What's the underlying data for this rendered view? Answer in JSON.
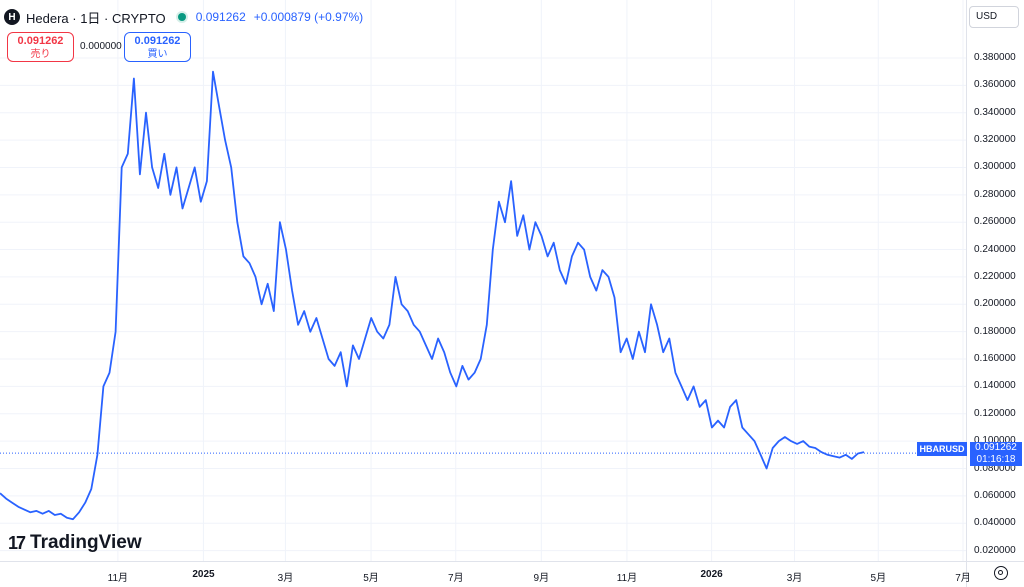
{
  "header": {
    "logo_letter": "H",
    "symbol_line": "Hedera · 1日 · CRYPTO",
    "price": "0.091262",
    "change": "+0.000879 (+0.97%)"
  },
  "trade": {
    "sell_price": "0.091262",
    "sell_label": "売り",
    "spread": "0.000000",
    "buy_price": "0.091262",
    "buy_label": "買い"
  },
  "currency": "USD",
  "last_price_label": {
    "symbol": "HBARUSD",
    "price": "0.091262",
    "countdown": "01:16:18"
  },
  "branding": {
    "mark": "17",
    "name": "TradingView"
  },
  "colors": {
    "line": "#2962ff",
    "sell": "#f23645",
    "buy": "#2962ff",
    "live_dot": "#089981"
  },
  "chart_data": {
    "type": "line",
    "series": [
      {
        "values": [
          0.062,
          0.058,
          0.055,
          0.052,
          0.05,
          0.048,
          0.049,
          0.047,
          0.049,
          0.046,
          0.047,
          0.044,
          0.043,
          0.048,
          0.055,
          0.065,
          0.09,
          0.14,
          0.15,
          0.18,
          0.3,
          0.31,
          0.365,
          0.295,
          0.34,
          0.3,
          0.285,
          0.31,
          0.28,
          0.3,
          0.27,
          0.285,
          0.3,
          0.275,
          0.29,
          0.37,
          0.345,
          0.32,
          0.3,
          0.26,
          0.235,
          0.23,
          0.22,
          0.2,
          0.215,
          0.195,
          0.26,
          0.24,
          0.21,
          0.185,
          0.195,
          0.18,
          0.19,
          0.175,
          0.16,
          0.155,
          0.165,
          0.14,
          0.17,
          0.16,
          0.175,
          0.19,
          0.18,
          0.175,
          0.185,
          0.22,
          0.2,
          0.195,
          0.185,
          0.18,
          0.17,
          0.16,
          0.175,
          0.165,
          0.15,
          0.14,
          0.155,
          0.145,
          0.15,
          0.16,
          0.185,
          0.24,
          0.275,
          0.26,
          0.29,
          0.25,
          0.265,
          0.24,
          0.26,
          0.25,
          0.235,
          0.245,
          0.225,
          0.215,
          0.235,
          0.245,
          0.24,
          0.22,
          0.21,
          0.225,
          0.22,
          0.205,
          0.165,
          0.175,
          0.16,
          0.18,
          0.165,
          0.2,
          0.185,
          0.165,
          0.175,
          0.15,
          0.14,
          0.13,
          0.14,
          0.125,
          0.13,
          0.11,
          0.115,
          0.11,
          0.125,
          0.13,
          0.11,
          0.105,
          0.1,
          0.09,
          0.08,
          0.095,
          0.1,
          0.103,
          0.1,
          0.098,
          0.1,
          0.096,
          0.095,
          0.092,
          0.09,
          0.089,
          0.088,
          0.09,
          0.087,
          0.091,
          0.092
        ]
      }
    ],
    "x_ticks": [
      {
        "label": "11月",
        "t": 0.062,
        "bold": false
      },
      {
        "label": "2025",
        "t": 0.157,
        "bold": true
      },
      {
        "label": "3月",
        "t": 0.248,
        "bold": false
      },
      {
        "label": "5月",
        "t": 0.343,
        "bold": false
      },
      {
        "label": "7月",
        "t": 0.437,
        "bold": false
      },
      {
        "label": "9月",
        "t": 0.532,
        "bold": false
      },
      {
        "label": "11月",
        "t": 0.627,
        "bold": false
      },
      {
        "label": "2026",
        "t": 0.721,
        "bold": true
      },
      {
        "label": "3月",
        "t": 0.813,
        "bold": false
      },
      {
        "label": "5月",
        "t": 0.906,
        "bold": false
      },
      {
        "label": "7月",
        "t": 1.0,
        "bold": false
      }
    ],
    "y_ticks": [
      "0.020000",
      "0.040000",
      "0.060000",
      "0.080000",
      "0.100000",
      "0.120000",
      "0.140000",
      "0.160000",
      "0.180000",
      "0.200000",
      "0.220000",
      "0.240000",
      "0.260000",
      "0.280000",
      "0.300000",
      "0.320000",
      "0.340000",
      "0.360000",
      "0.380000"
    ],
    "ylim": [
      0.0,
      0.395
    ],
    "last_value": 0.091262,
    "grid": true,
    "legend": "none"
  }
}
